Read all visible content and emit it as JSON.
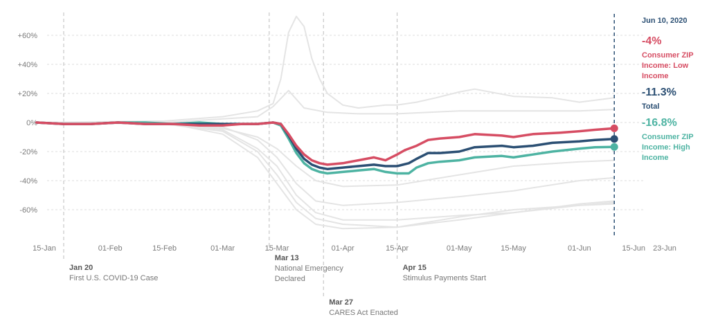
{
  "chart_data": {
    "type": "line",
    "title": "",
    "xlabel": "",
    "ylabel": "",
    "ylim": [
      -80,
      75
    ],
    "grid": true,
    "x_ticks": [
      "15-Jan",
      "01-Feb",
      "15-Feb",
      "01-Mar",
      "15-Mar",
      "01-Apr",
      "15-Apr",
      "01-May",
      "15-May",
      "01-Jun",
      "15-Jun",
      "23-Jun"
    ],
    "y_ticks": [
      {
        "v": 60,
        "label": "+60%"
      },
      {
        "v": 40,
        "label": "+40%"
      },
      {
        "v": 20,
        "label": "+20%"
      },
      {
        "v": 0,
        "label": "0%"
      },
      {
        "v": -20,
        "label": "-20%"
      },
      {
        "v": -40,
        "label": "-40%"
      },
      {
        "v": -60,
        "label": "-60%"
      }
    ],
    "series": [
      {
        "name": "Consumer ZIP Income: Low Income",
        "color": "#d64d63",
        "points": [
          [
            "01-13",
            0
          ],
          [
            "01-20",
            -1
          ],
          [
            "01-27",
            -1
          ],
          [
            "02-03",
            0
          ],
          [
            "02-10",
            -1
          ],
          [
            "02-17",
            -1
          ],
          [
            "02-24",
            -2
          ],
          [
            "03-01",
            -2
          ],
          [
            "03-06",
            -1
          ],
          [
            "03-10",
            -1
          ],
          [
            "03-14",
            0
          ],
          [
            "03-16",
            -1
          ],
          [
            "03-18",
            -8
          ],
          [
            "03-20",
            -16
          ],
          [
            "03-22",
            -22
          ],
          [
            "03-24",
            -26
          ],
          [
            "03-26",
            -28
          ],
          [
            "03-28",
            -29
          ],
          [
            "04-01",
            -28
          ],
          [
            "04-05",
            -26
          ],
          [
            "04-09",
            -24
          ],
          [
            "04-12",
            -26
          ],
          [
            "04-15",
            -22
          ],
          [
            "04-17",
            -19
          ],
          [
            "04-20",
            -16
          ],
          [
            "04-23",
            -12
          ],
          [
            "04-26",
            -11
          ],
          [
            "05-01",
            -10
          ],
          [
            "05-05",
            -8
          ],
          [
            "05-12",
            -9
          ],
          [
            "05-15",
            -10
          ],
          [
            "05-20",
            -8
          ],
          [
            "05-27",
            -7
          ],
          [
            "06-01",
            -6
          ],
          [
            "06-05",
            -5
          ],
          [
            "06-10",
            -4
          ]
        ]
      },
      {
        "name": "Total",
        "color": "#2b4f73",
        "points": [
          [
            "01-13",
            0
          ],
          [
            "01-20",
            -1
          ],
          [
            "01-27",
            -1
          ],
          [
            "02-03",
            0
          ],
          [
            "02-10",
            -1
          ],
          [
            "02-17",
            -1
          ],
          [
            "02-24",
            -1
          ],
          [
            "03-01",
            -1
          ],
          [
            "03-06",
            -1
          ],
          [
            "03-10",
            -1
          ],
          [
            "03-14",
            0
          ],
          [
            "03-16",
            -1
          ],
          [
            "03-18",
            -9
          ],
          [
            "03-20",
            -18
          ],
          [
            "03-22",
            -25
          ],
          [
            "03-24",
            -29
          ],
          [
            "03-26",
            -31
          ],
          [
            "03-28",
            -32
          ],
          [
            "04-01",
            -31
          ],
          [
            "04-05",
            -30
          ],
          [
            "04-09",
            -29
          ],
          [
            "04-12",
            -30
          ],
          [
            "04-15",
            -30
          ],
          [
            "04-18",
            -28
          ],
          [
            "04-20",
            -25
          ],
          [
            "04-23",
            -21
          ],
          [
            "04-26",
            -21
          ],
          [
            "05-01",
            -20
          ],
          [
            "05-05",
            -17
          ],
          [
            "05-12",
            -16
          ],
          [
            "05-15",
            -17
          ],
          [
            "05-20",
            -16
          ],
          [
            "05-25",
            -14
          ],
          [
            "06-01",
            -13
          ],
          [
            "06-05",
            -12
          ],
          [
            "06-10",
            -11.3
          ]
        ]
      },
      {
        "name": "Consumer ZIP Income: High Income",
        "color": "#4db3a2",
        "points": [
          [
            "01-13",
            0
          ],
          [
            "01-20",
            -1
          ],
          [
            "01-27",
            -1
          ],
          [
            "02-03",
            0
          ],
          [
            "02-10",
            0
          ],
          [
            "02-17",
            -1
          ],
          [
            "02-24",
            0
          ],
          [
            "03-01",
            -1
          ],
          [
            "03-06",
            -1
          ],
          [
            "03-10",
            -1
          ],
          [
            "03-14",
            0
          ],
          [
            "03-16",
            -2
          ],
          [
            "03-18",
            -11
          ],
          [
            "03-20",
            -21
          ],
          [
            "03-22",
            -28
          ],
          [
            "03-24",
            -32
          ],
          [
            "03-26",
            -34
          ],
          [
            "03-28",
            -35
          ],
          [
            "04-01",
            -34
          ],
          [
            "04-05",
            -33
          ],
          [
            "04-09",
            -32
          ],
          [
            "04-12",
            -34
          ],
          [
            "04-15",
            -35
          ],
          [
            "04-18",
            -35
          ],
          [
            "04-20",
            -31
          ],
          [
            "04-23",
            -28
          ],
          [
            "04-26",
            -27
          ],
          [
            "05-01",
            -26
          ],
          [
            "05-05",
            -24
          ],
          [
            "05-12",
            -23
          ],
          [
            "05-15",
            -24
          ],
          [
            "05-20",
            -22
          ],
          [
            "05-25",
            -20
          ],
          [
            "06-01",
            -18
          ],
          [
            "06-05",
            -17
          ],
          [
            "06-10",
            -16.8
          ]
        ]
      }
    ],
    "background_series": [
      {
        "points": [
          [
            "01-13",
            0
          ],
          [
            "02-15",
            1
          ],
          [
            "03-01",
            4
          ],
          [
            "03-10",
            8
          ],
          [
            "03-14",
            13
          ],
          [
            "03-16",
            30
          ],
          [
            "03-18",
            62
          ],
          [
            "03-20",
            73
          ],
          [
            "03-22",
            66
          ],
          [
            "03-24",
            44
          ],
          [
            "03-26",
            30
          ],
          [
            "03-28",
            20
          ],
          [
            "04-01",
            12
          ],
          [
            "04-05",
            10
          ],
          [
            "04-12",
            12
          ],
          [
            "04-15",
            12
          ],
          [
            "04-20",
            14
          ],
          [
            "04-25",
            17
          ],
          [
            "05-01",
            21
          ],
          [
            "05-05",
            23
          ],
          [
            "05-15",
            18
          ],
          [
            "05-25",
            17
          ],
          [
            "06-01",
            14
          ],
          [
            "06-10",
            17
          ]
        ]
      },
      {
        "points": [
          [
            "01-13",
            0
          ],
          [
            "02-15",
            0
          ],
          [
            "03-10",
            4
          ],
          [
            "03-14",
            11
          ],
          [
            "03-18",
            22
          ],
          [
            "03-22",
            10
          ],
          [
            "03-28",
            7
          ],
          [
            "04-05",
            6
          ],
          [
            "04-15",
            6
          ],
          [
            "05-01",
            8
          ],
          [
            "05-15",
            8
          ],
          [
            "06-01",
            8
          ],
          [
            "06-10",
            9
          ]
        ]
      },
      {
        "points": [
          [
            "01-13",
            0
          ],
          [
            "02-15",
            0
          ],
          [
            "03-01",
            -3
          ],
          [
            "03-10",
            -12
          ],
          [
            "03-15",
            -24
          ],
          [
            "03-20",
            -42
          ],
          [
            "03-25",
            -54
          ],
          [
            "04-01",
            -57
          ],
          [
            "04-15",
            -55
          ],
          [
            "05-01",
            -51
          ],
          [
            "05-15",
            -47
          ],
          [
            "06-01",
            -40
          ],
          [
            "06-10",
            -38
          ]
        ]
      },
      {
        "points": [
          [
            "01-13",
            0
          ],
          [
            "02-15",
            0
          ],
          [
            "03-01",
            -5
          ],
          [
            "03-10",
            -18
          ],
          [
            "03-15",
            -30
          ],
          [
            "03-20",
            -50
          ],
          [
            "03-25",
            -62
          ],
          [
            "04-01",
            -67
          ],
          [
            "04-15",
            -67
          ],
          [
            "05-01",
            -64
          ],
          [
            "05-15",
            -62
          ],
          [
            "06-01",
            -57
          ],
          [
            "06-10",
            -55
          ]
        ]
      },
      {
        "points": [
          [
            "01-13",
            0
          ],
          [
            "02-15",
            -1
          ],
          [
            "03-01",
            -6
          ],
          [
            "03-10",
            -20
          ],
          [
            "03-15",
            -36
          ],
          [
            "03-20",
            -55
          ],
          [
            "03-25",
            -66
          ],
          [
            "04-01",
            -70
          ],
          [
            "04-15",
            -72
          ],
          [
            "05-01",
            -67
          ],
          [
            "05-15",
            -62
          ],
          [
            "06-01",
            -56
          ],
          [
            "06-10",
            -54
          ]
        ]
      },
      {
        "points": [
          [
            "01-13",
            0
          ],
          [
            "02-15",
            0
          ],
          [
            "03-01",
            -8
          ],
          [
            "03-10",
            -24
          ],
          [
            "03-15",
            -42
          ],
          [
            "03-20",
            -60
          ],
          [
            "03-25",
            -70
          ],
          [
            "04-01",
            -73
          ],
          [
            "04-15",
            -72
          ],
          [
            "05-01",
            -65
          ],
          [
            "05-15",
            -60
          ],
          [
            "06-01",
            -57
          ],
          [
            "06-10",
            -56
          ]
        ]
      },
      {
        "points": [
          [
            "01-13",
            0
          ],
          [
            "02-15",
            0
          ],
          [
            "03-01",
            -4
          ],
          [
            "03-10",
            -10
          ],
          [
            "03-15",
            -18
          ],
          [
            "03-20",
            -30
          ],
          [
            "03-25",
            -40
          ],
          [
            "04-01",
            -44
          ],
          [
            "04-15",
            -43
          ],
          [
            "05-01",
            -36
          ],
          [
            "05-15",
            -30
          ],
          [
            "06-01",
            -27
          ],
          [
            "06-10",
            -26
          ]
        ]
      }
    ],
    "events": [
      {
        "date": "01-20",
        "label_date": "Jan 20",
        "label": "First U.S. COVID-19 Case",
        "row": 1
      },
      {
        "date": "03-13",
        "label_date": "Mar 13",
        "label": "National Emergency Declared",
        "label_lines": [
          "National Emergency",
          "Declared"
        ],
        "row": 0
      },
      {
        "date": "03-27",
        "label_date": "Mar 27",
        "label": "CARES Act Enacted",
        "row": 2
      },
      {
        "date": "04-15",
        "label_date": "Apr 15",
        "label": "Stimulus Payments Start",
        "row": 1
      }
    ],
    "current_date": "06-10",
    "sidebar": {
      "date": "Jun 10, 2020",
      "items": [
        {
          "value": "-4%",
          "label": "Consumer ZIP Income: Low Income",
          "label_lines": [
            "Consumer ZIP",
            "Income: Low",
            "Income"
          ],
          "color": "#d64d63"
        },
        {
          "value": "-11.3%",
          "label": "Total",
          "label_lines": [
            "Total"
          ],
          "color": "#2b4f73"
        },
        {
          "value": "-16.8%",
          "label": "Consumer ZIP Income: High Income",
          "label_lines": [
            "Consumer ZIP",
            "Income: High",
            "Income"
          ],
          "color": "#4db3a2"
        }
      ]
    }
  }
}
